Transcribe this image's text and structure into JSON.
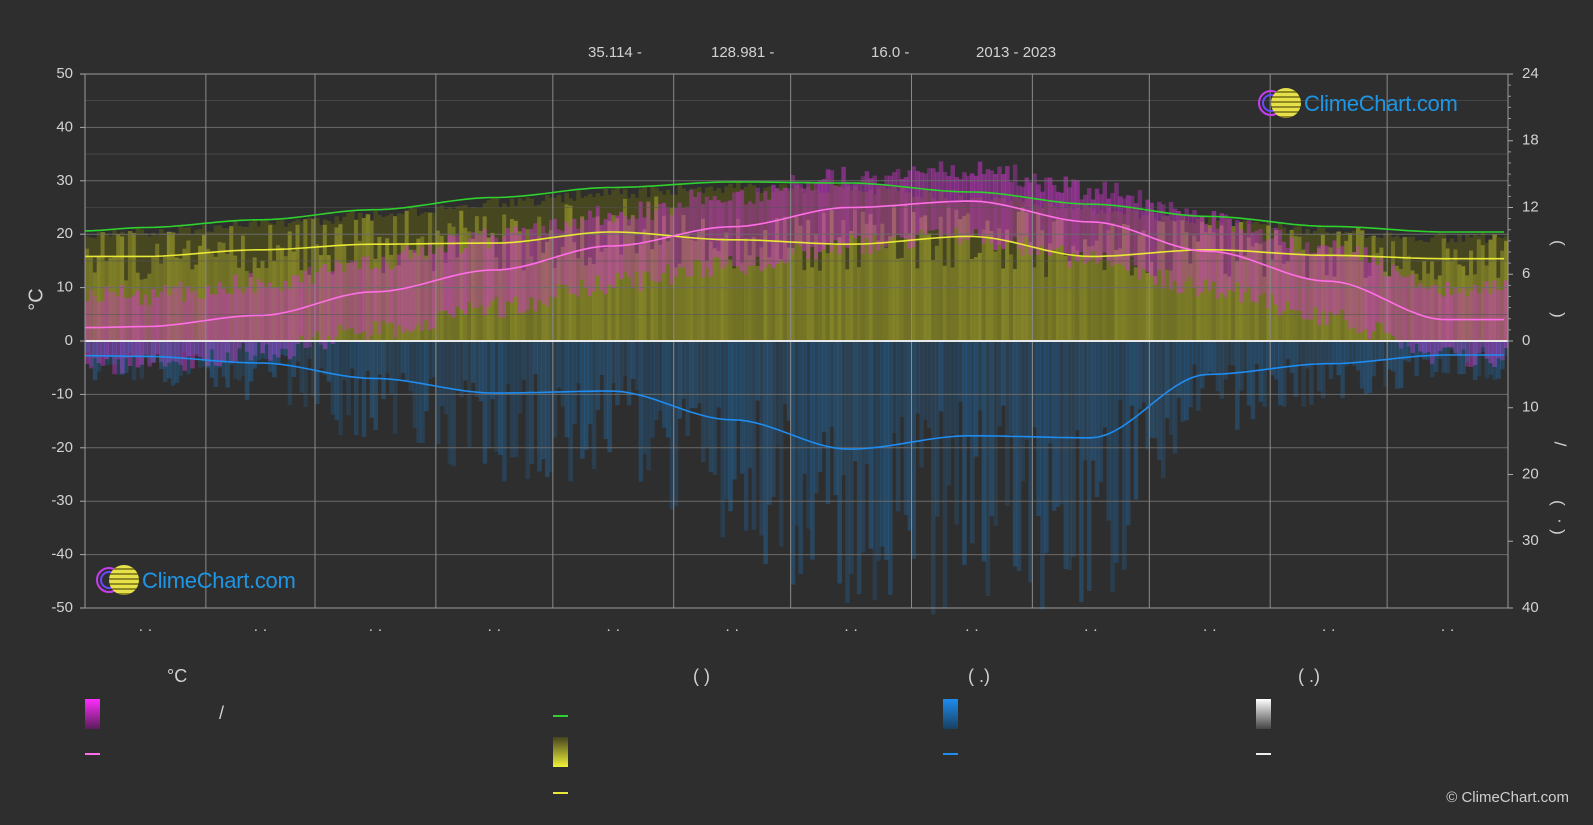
{
  "header": {
    "lat": "35.114 -",
    "lon": "128.981 -",
    "elev": "16.0 -",
    "years": "2013 - 2023"
  },
  "left_axis_title": "°C",
  "right_axis_marks": [
    "(",
    ")",
    "/",
    "(",
    "·",
    ")"
  ],
  "month_labels": [
    "· ·",
    "· ·",
    "· ·",
    "· ·",
    "· ·",
    "· ·",
    "· ·",
    "· ·",
    "· ·",
    "· ·",
    "· ·",
    "· ·"
  ],
  "legend": {
    "col1_head": "°C",
    "col2_head": "(          )",
    "col3_head": "(   .)",
    "col4_head": "(   .)",
    "slash": "/"
  },
  "logo_text": "ClimeChart.com",
  "copyright": "© ClimeChart.com",
  "colors": {
    "background": "#2e2e2e",
    "daylight": "#2fd12f",
    "sunshine": "#e8e836",
    "temp_mean": "#ff6ee6",
    "temp_range": "#d236d2",
    "precip": "#1f7fcf",
    "snow": "#dddddd"
  },
  "chart_data": {
    "type": "line",
    "x_unit": "day of year",
    "x": [
      0,
      15,
      45,
      74,
      105,
      135,
      166,
      196,
      227,
      258,
      288,
      319,
      349,
      365
    ],
    "left_axis": {
      "label": "°C",
      "ylim": [
        -50,
        50
      ],
      "ticks": [
        50,
        40,
        30,
        20,
        10,
        0,
        -10,
        -20,
        -30,
        -40,
        -50
      ]
    },
    "right_axis_top": {
      "ylim": [
        0,
        24
      ],
      "ticks": [
        24,
        18,
        12,
        6,
        0
      ],
      "unit": "hours"
    },
    "right_axis_bottom": {
      "ylim": [
        0,
        40
      ],
      "ticks": [
        0,
        10,
        20,
        30,
        40
      ],
      "unit": "mm"
    },
    "grid": true,
    "series": [
      {
        "axis": "hours",
        "values": [
          9.9,
          10.2,
          10.9,
          11.8,
          12.9,
          13.8,
          14.3,
          14.2,
          13.4,
          12.3,
          11.2,
          10.3,
          9.8,
          9.8
        ]
      },
      {
        "axis": "hours",
        "values": [
          7.6,
          7.6,
          8.2,
          8.7,
          8.8,
          9.8,
          9.1,
          8.7,
          9.4,
          7.6,
          8.2,
          7.7,
          7.4,
          7.4
        ]
      },
      {
        "axis": "celsius",
        "values": [
          2.5,
          2.7,
          4.8,
          9.2,
          13.3,
          17.8,
          21.4,
          25.0,
          26.2,
          22.3,
          16.8,
          11.2,
          4.0,
          4.0
        ]
      },
      {
        "axis": "mm",
        "values": [
          2.2,
          2.3,
          3.3,
          5.6,
          7.8,
          7.5,
          11.8,
          16.2,
          14.2,
          14.5,
          5.0,
          3.4,
          2.1,
          2.1
        ]
      }
    ]
  }
}
